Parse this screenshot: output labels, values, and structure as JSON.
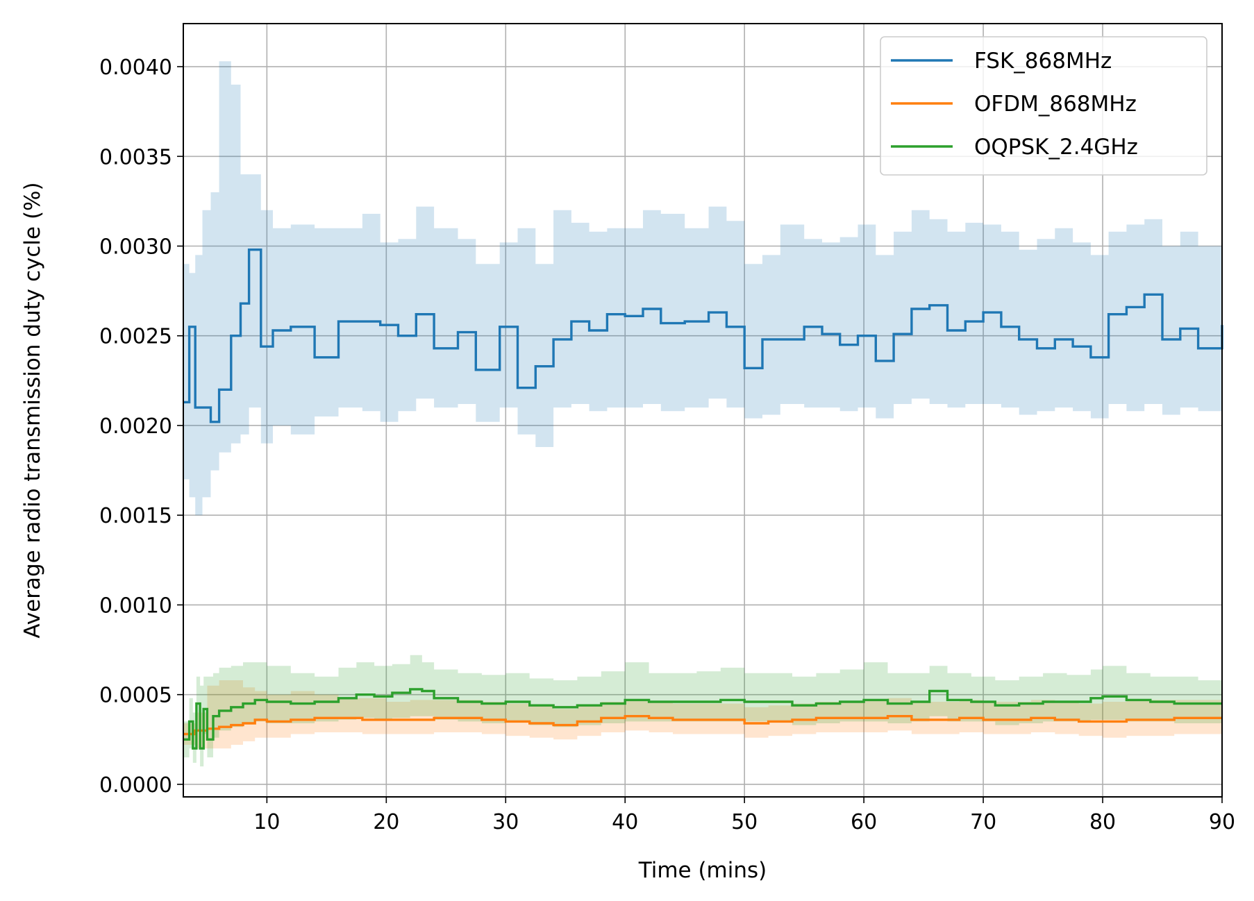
{
  "chart_data": {
    "type": "line",
    "title": "",
    "xlabel": "Time (mins)",
    "ylabel": "Average radio transmission duty cycle (%)",
    "xlim": [
      3,
      90
    ],
    "ylim": [
      -7e-05,
      0.00424
    ],
    "xticks": [
      10,
      20,
      30,
      40,
      50,
      60,
      70,
      80,
      90
    ],
    "xtick_labels": [
      "10",
      "20",
      "30",
      "40",
      "50",
      "60",
      "70",
      "80",
      "90"
    ],
    "yticks": [
      0.0,
      0.0005,
      0.001,
      0.0015,
      0.002,
      0.0025,
      0.003,
      0.0035,
      0.004
    ],
    "ytick_labels": [
      "0.0000",
      "0.0005",
      "0.0010",
      "0.0015",
      "0.0020",
      "0.0025",
      "0.0030",
      "0.0035",
      "0.0040"
    ],
    "grid": true,
    "legend_position": "top-right",
    "series": [
      {
        "name": "FSK_868MHz",
        "color": "#1f77b4",
        "band_color": "#1f77b4",
        "x": [
          3,
          3.5,
          4,
          4.6,
          5.3,
          6,
          7,
          7.8,
          8.5,
          9.5,
          10.5,
          12,
          14,
          16,
          18,
          19.5,
          21,
          22.5,
          24,
          26,
          27.5,
          29.5,
          31,
          32.5,
          34,
          35.5,
          37,
          38.5,
          40,
          41.5,
          43,
          45,
          47,
          48.5,
          50,
          51.5,
          53,
          55,
          56.5,
          58,
          59.5,
          61,
          62.5,
          64,
          65.5,
          67,
          68.5,
          70,
          71.5,
          73,
          74.5,
          76,
          77.5,
          79,
          80.5,
          82,
          83.5,
          85,
          86.5,
          88,
          90
        ],
        "values": [
          0.00213,
          0.00255,
          0.0021,
          0.0021,
          0.00202,
          0.0022,
          0.0025,
          0.00268,
          0.00298,
          0.00244,
          0.00253,
          0.00255,
          0.00238,
          0.00258,
          0.00258,
          0.00256,
          0.0025,
          0.00262,
          0.00243,
          0.00252,
          0.00231,
          0.00255,
          0.00221,
          0.00233,
          0.00248,
          0.00258,
          0.00253,
          0.00262,
          0.00261,
          0.00265,
          0.00257,
          0.00258,
          0.00263,
          0.00255,
          0.00232,
          0.00248,
          0.00248,
          0.00255,
          0.00251,
          0.00245,
          0.0025,
          0.00236,
          0.00251,
          0.00265,
          0.00267,
          0.00253,
          0.00258,
          0.00263,
          0.00255,
          0.00248,
          0.00243,
          0.00248,
          0.00244,
          0.00238,
          0.00262,
          0.00266,
          0.00273,
          0.00248,
          0.00254,
          0.00243,
          0.00256
        ],
        "upper": [
          0.0029,
          0.00285,
          0.00295,
          0.0032,
          0.0033,
          0.00403,
          0.0039,
          0.0034,
          0.0034,
          0.0032,
          0.0031,
          0.00312,
          0.0031,
          0.0031,
          0.00318,
          0.00302,
          0.00304,
          0.00322,
          0.0031,
          0.00304,
          0.0029,
          0.00302,
          0.0031,
          0.0029,
          0.0032,
          0.00313,
          0.00308,
          0.0031,
          0.0031,
          0.0032,
          0.00318,
          0.0031,
          0.00322,
          0.00314,
          0.0029,
          0.00295,
          0.00312,
          0.00304,
          0.00302,
          0.00305,
          0.00312,
          0.00295,
          0.00308,
          0.0032,
          0.00315,
          0.00308,
          0.00313,
          0.00312,
          0.00308,
          0.00298,
          0.00304,
          0.0031,
          0.00302,
          0.00295,
          0.00308,
          0.00312,
          0.00315,
          0.003,
          0.00308,
          0.003,
          0.00302
        ],
        "lower": [
          0.0017,
          0.0016,
          0.0015,
          0.0016,
          0.00175,
          0.00185,
          0.0019,
          0.00195,
          0.0021,
          0.0019,
          0.002,
          0.00195,
          0.00205,
          0.0021,
          0.00208,
          0.00202,
          0.00208,
          0.00215,
          0.0021,
          0.00212,
          0.00202,
          0.0021,
          0.00195,
          0.00188,
          0.0021,
          0.00212,
          0.00208,
          0.0021,
          0.0021,
          0.00212,
          0.00208,
          0.0021,
          0.00215,
          0.0021,
          0.00204,
          0.00206,
          0.00212,
          0.0021,
          0.0021,
          0.00208,
          0.0021,
          0.00204,
          0.00212,
          0.00215,
          0.00212,
          0.0021,
          0.00212,
          0.00212,
          0.0021,
          0.00206,
          0.00208,
          0.0021,
          0.00208,
          0.00204,
          0.00212,
          0.00208,
          0.00212,
          0.00206,
          0.0021,
          0.00208,
          0.0021
        ]
      },
      {
        "name": "OFDM_868MHz",
        "color": "#ff7f0e",
        "band_color": "#ff7f0e",
        "x": [
          3,
          4,
          5,
          6,
          7,
          8,
          9,
          10,
          12,
          14,
          16,
          18,
          20,
          22,
          24,
          26,
          28,
          30,
          32,
          34,
          36,
          38,
          40,
          42,
          44,
          46,
          48,
          50,
          52,
          54,
          56,
          58,
          60,
          62,
          64,
          66,
          68,
          70,
          72,
          74,
          76,
          78,
          80,
          82,
          84,
          86,
          88,
          90
        ],
        "values": [
          0.00028,
          0.0003,
          0.00031,
          0.00032,
          0.00033,
          0.00034,
          0.00036,
          0.00035,
          0.00036,
          0.00037,
          0.00037,
          0.00036,
          0.00036,
          0.00036,
          0.00037,
          0.00037,
          0.00036,
          0.00035,
          0.00034,
          0.00033,
          0.00035,
          0.00037,
          0.00038,
          0.00037,
          0.00036,
          0.00036,
          0.00036,
          0.00034,
          0.00035,
          0.00036,
          0.00037,
          0.00037,
          0.00037,
          0.00038,
          0.00036,
          0.00036,
          0.00037,
          0.00036,
          0.00036,
          0.00037,
          0.00036,
          0.00035,
          0.00035,
          0.00036,
          0.00036,
          0.00037,
          0.00037,
          0.00037
        ],
        "upper": [
          0.00034,
          0.0004,
          0.00055,
          0.00058,
          0.00058,
          0.00054,
          0.00052,
          0.0005,
          0.00052,
          0.0005,
          0.00048,
          0.00048,
          0.00046,
          0.00047,
          0.00047,
          0.00047,
          0.00046,
          0.00045,
          0.00044,
          0.00042,
          0.00044,
          0.00046,
          0.00047,
          0.00046,
          0.00045,
          0.00045,
          0.00045,
          0.00043,
          0.00044,
          0.00045,
          0.00046,
          0.00046,
          0.00047,
          0.00048,
          0.00046,
          0.00046,
          0.00047,
          0.00046,
          0.00046,
          0.00047,
          0.00046,
          0.00045,
          0.00046,
          0.00047,
          0.00047,
          0.00047,
          0.00047,
          0.00046
        ],
        "lower": [
          0.00022,
          0.0002,
          0.0002,
          0.0002,
          0.00022,
          0.00024,
          0.00026,
          0.00026,
          0.00028,
          0.00029,
          0.00029,
          0.00028,
          0.00028,
          0.00028,
          0.00029,
          0.00029,
          0.00028,
          0.00027,
          0.00026,
          0.00025,
          0.00027,
          0.00029,
          0.0003,
          0.00029,
          0.00028,
          0.00028,
          0.00028,
          0.00026,
          0.00027,
          0.00028,
          0.00029,
          0.00029,
          0.00029,
          0.0003,
          0.00028,
          0.00028,
          0.00029,
          0.00028,
          0.00028,
          0.00029,
          0.00028,
          0.00027,
          0.00026,
          0.00027,
          0.00027,
          0.00028,
          0.00028,
          0.00029
        ]
      },
      {
        "name": "OQPSK_2.4GHz",
        "color": "#2ca02c",
        "band_color": "#2ca02c",
        "x": [
          3,
          3.5,
          3.8,
          4.1,
          4.4,
          4.7,
          5,
          5.5,
          6,
          7,
          8,
          9,
          10,
          12,
          14,
          16,
          17.5,
          19,
          20.5,
          22,
          23,
          24,
          26,
          28,
          30,
          32,
          34,
          36,
          38,
          40,
          42,
          44,
          46,
          48,
          50,
          52,
          54,
          56,
          58,
          60,
          62,
          64,
          65.5,
          67,
          69,
          71,
          73,
          75,
          77,
          79,
          80,
          82,
          84,
          86,
          88,
          90
        ],
        "values": [
          0.00025,
          0.00035,
          0.0002,
          0.00045,
          0.0002,
          0.00042,
          0.00025,
          0.00038,
          0.00041,
          0.00043,
          0.00045,
          0.00047,
          0.00046,
          0.00045,
          0.00046,
          0.00048,
          0.0005,
          0.00049,
          0.00051,
          0.00053,
          0.00052,
          0.00048,
          0.00046,
          0.00045,
          0.00046,
          0.00044,
          0.00043,
          0.00044,
          0.00045,
          0.00047,
          0.00046,
          0.00046,
          0.00046,
          0.00047,
          0.00046,
          0.00046,
          0.00044,
          0.00045,
          0.00046,
          0.00047,
          0.00045,
          0.00046,
          0.00052,
          0.00047,
          0.00046,
          0.00044,
          0.00045,
          0.00046,
          0.00046,
          0.00048,
          0.00049,
          0.00047,
          0.00046,
          0.00045,
          0.00045,
          0.00045
        ],
        "upper": [
          0.00035,
          0.00048,
          0.0004,
          0.0006,
          0.00055,
          0.0006,
          0.0006,
          0.00062,
          0.00065,
          0.00066,
          0.00068,
          0.00068,
          0.00066,
          0.00062,
          0.0006,
          0.00065,
          0.00068,
          0.00066,
          0.00067,
          0.00072,
          0.00068,
          0.00064,
          0.00062,
          0.00061,
          0.00062,
          0.00059,
          0.00058,
          0.0006,
          0.00063,
          0.00068,
          0.00062,
          0.00062,
          0.00063,
          0.00065,
          0.00062,
          0.00062,
          0.0006,
          0.00062,
          0.00064,
          0.00068,
          0.00062,
          0.00062,
          0.00066,
          0.00062,
          0.0006,
          0.00058,
          0.0006,
          0.00062,
          0.00061,
          0.00064,
          0.00066,
          0.00062,
          0.0006,
          0.0006,
          0.00058,
          0.00056
        ],
        "lower": [
          0.00015,
          0.0002,
          0.00012,
          0.0003,
          0.0001,
          0.00028,
          0.00015,
          0.00026,
          0.0003,
          0.00032,
          0.00034,
          0.00035,
          0.00034,
          0.00034,
          0.00035,
          0.00036,
          0.00037,
          0.00036,
          0.00037,
          0.00038,
          0.00038,
          0.00036,
          0.00035,
          0.00034,
          0.00035,
          0.00033,
          0.00032,
          0.00033,
          0.00034,
          0.00035,
          0.00035,
          0.00035,
          0.00035,
          0.00035,
          0.00035,
          0.00035,
          0.00033,
          0.00034,
          0.00035,
          0.00035,
          0.00034,
          0.00035,
          0.00038,
          0.00035,
          0.00035,
          0.00033,
          0.00034,
          0.00035,
          0.00035,
          0.00036,
          0.00036,
          0.00035,
          0.00035,
          0.00034,
          0.00034,
          0.00035
        ]
      }
    ]
  }
}
